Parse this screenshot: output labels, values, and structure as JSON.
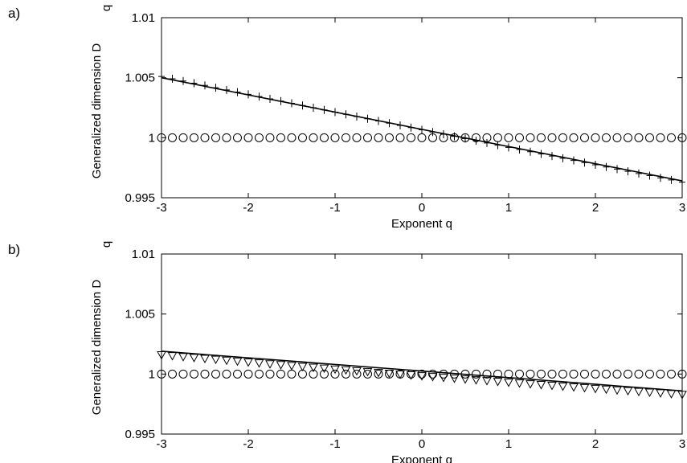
{
  "figure": {
    "panels": [
      {
        "label": "a)",
        "xlabel": "Exponent q",
        "ylabel": "Generalized dimension D",
        "ylabel_sub": "q",
        "xticks": [
          "-3",
          "-2",
          "-1",
          "0",
          "1",
          "2",
          "3"
        ],
        "yticks": [
          "0.995",
          "1",
          "1.005",
          "1.01"
        ]
      },
      {
        "label": "b)",
        "xlabel": "Exponent q",
        "ylabel": "Generalized dimension D",
        "ylabel_sub": "q",
        "xticks": [
          "-3",
          "-2",
          "-1",
          "0",
          "1",
          "2",
          "3"
        ],
        "yticks": [
          "0.995",
          "1",
          "1.005",
          "1.01"
        ]
      }
    ]
  },
  "chart_data": [
    {
      "type": "line",
      "panel": "a)",
      "xlabel": "Exponent q",
      "ylabel": "Generalized dimension D_q",
      "xlim": [
        -3,
        3
      ],
      "ylim": [
        0.995,
        1.01
      ],
      "grid": false,
      "series": [
        {
          "marker": "circle",
          "line": false,
          "x_range": [
            -3,
            3
          ],
          "count": 49,
          "y": "constant",
          "value": 1.0
        },
        {
          "marker": "plus",
          "line": false,
          "x_range": [
            -3,
            3
          ],
          "count": 49,
          "y_start": 1.0051,
          "y_end": 0.9963,
          "curvature": -4e-05
        },
        {
          "marker": "none",
          "line": true,
          "x_range": [
            -3,
            3
          ],
          "y_start": 1.005,
          "y_end": 0.9964
        }
      ]
    },
    {
      "type": "line",
      "panel": "b)",
      "xlabel": "Exponent q",
      "ylabel": "Generalized dimension D_q",
      "xlim": [
        -3,
        3
      ],
      "ylim": [
        0.995,
        1.01
      ],
      "grid": false,
      "series": [
        {
          "marker": "circle",
          "line": false,
          "x_range": [
            -3,
            3
          ],
          "count": 49,
          "y": "constant",
          "value": 1.0
        },
        {
          "marker": "triangle-down",
          "line": false,
          "x_range": [
            -3,
            3
          ],
          "count": 49,
          "y_start": 1.0016,
          "y_end": 0.9983,
          "curvature": -0.0001
        },
        {
          "marker": "none",
          "line": true,
          "x_range": [
            -3,
            3
          ],
          "y_start": 1.0019,
          "y_end": 0.9986
        }
      ]
    }
  ]
}
